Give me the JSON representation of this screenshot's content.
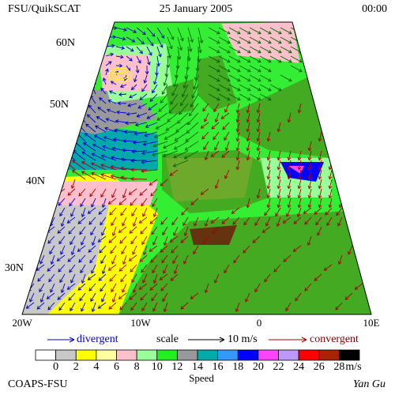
{
  "header": {
    "source": "FSU/QuikSCAT",
    "date": "25 January 2005",
    "time": "00:00"
  },
  "map": {
    "lat_labels": [
      "60N",
      "50N",
      "40N",
      "30N"
    ],
    "lon_labels": [
      "20W",
      "10W",
      "0",
      "10E"
    ]
  },
  "legend": {
    "divergent": "divergent",
    "scale": "scale",
    "scale_value": "10 m/s",
    "convergent": "convergent"
  },
  "colorbar": {
    "ticks": [
      0,
      2,
      4,
      6,
      8,
      10,
      12,
      14,
      16,
      18,
      20,
      22,
      24,
      26,
      28
    ],
    "unit": "m/s",
    "label": "Speed",
    "colors": [
      "#ffffff",
      "#c8c8c8",
      "#ffff00",
      "#ffffa0",
      "#ffc0cb",
      "#99ff99",
      "#22ee22",
      "#999999",
      "#00aaaa",
      "#3399ff",
      "#0000ff",
      "#ff44ff",
      "#bb99ff",
      "#ff0000",
      "#aa2200",
      "#000000"
    ]
  },
  "footer": {
    "credit": "COAPS-FSU",
    "author": "Yan Gu"
  }
}
